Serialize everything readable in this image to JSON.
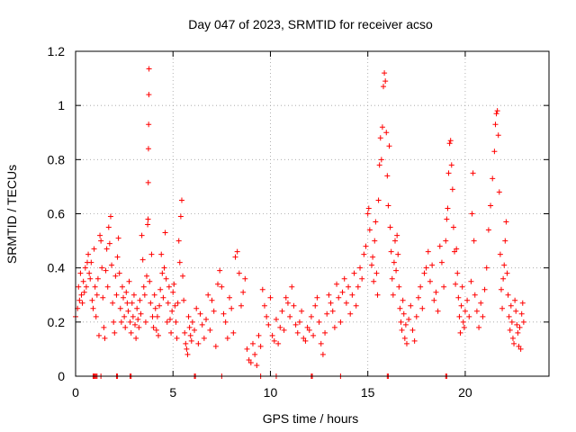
{
  "chart_data": {
    "type": "scatter",
    "title": "Day 047 of 2023, SRMTID for receiver acso",
    "xlabel": "GPS time / hours",
    "ylabel": "SRMTID / TECUs",
    "xlim": [
      0,
      24.3
    ],
    "ylim": [
      0,
      1.2
    ],
    "x_ticks": [
      0,
      5,
      10,
      15,
      20
    ],
    "x_tick_labels": [
      "0",
      "5",
      "10",
      "15",
      "20"
    ],
    "y_ticks": [
      0,
      0.2,
      0.4,
      0.6,
      0.8,
      1.0,
      1.2
    ],
    "y_tick_labels": [
      "0",
      "0.2",
      "0.4",
      "0.6",
      "0.8",
      "1",
      "1.2"
    ],
    "grid": true,
    "marker": "plus",
    "color": "#ff0000",
    "points": [
      [
        0.0,
        0.22
      ],
      [
        0.1,
        0.25
      ],
      [
        0.15,
        0.33
      ],
      [
        0.2,
        0.28
      ],
      [
        0.25,
        0.38
      ],
      [
        0.3,
        0.3
      ],
      [
        0.35,
        0.27
      ],
      [
        0.4,
        0.35
      ],
      [
        0.45,
        0.31
      ],
      [
        0.5,
        0.4
      ],
      [
        0.55,
        0.33
      ],
      [
        0.6,
        0.42
      ],
      [
        0.65,
        0.45
      ],
      [
        0.7,
        0.38
      ],
      [
        0.75,
        0.36
      ],
      [
        0.8,
        0.42
      ],
      [
        0.85,
        0.28
      ],
      [
        0.9,
        0.25
      ],
      [
        0.95,
        0.47
      ],
      [
        1.0,
        0.33
      ],
      [
        1.05,
        0.22
      ],
      [
        1.1,
        0.3
      ],
      [
        1.15,
        0.36
      ],
      [
        1.2,
        0.15
      ],
      [
        1.25,
        0.52
      ],
      [
        1.3,
        0.5
      ],
      [
        1.35,
        0.4
      ],
      [
        1.4,
        0.29
      ],
      [
        1.45,
        0.18
      ],
      [
        1.5,
        0.14
      ],
      [
        1.55,
        0.39
      ],
      [
        1.6,
        0.47
      ],
      [
        1.65,
        0.33
      ],
      [
        1.7,
        0.55
      ],
      [
        1.75,
        0.49
      ],
      [
        1.8,
        0.59
      ],
      [
        1.85,
        0.41
      ],
      [
        1.9,
        0.27
      ],
      [
        1.95,
        0.2
      ],
      [
        2.0,
        0.16
      ],
      [
        2.05,
        0.37
      ],
      [
        2.1,
        0.3
      ],
      [
        2.15,
        0.44
      ],
      [
        2.2,
        0.51
      ],
      [
        2.25,
        0.38
      ],
      [
        2.3,
        0.25
      ],
      [
        2.35,
        0.2
      ],
      [
        2.4,
        0.33
      ],
      [
        2.45,
        0.29
      ],
      [
        2.5,
        0.22
      ],
      [
        2.55,
        0.18
      ],
      [
        2.6,
        0.31
      ],
      [
        2.65,
        0.27
      ],
      [
        2.7,
        0.24
      ],
      [
        2.75,
        0.35
      ],
      [
        2.8,
        0.2
      ],
      [
        2.85,
        0.16
      ],
      [
        2.9,
        0.27
      ],
      [
        2.95,
        0.22
      ],
      [
        3.0,
        0.3
      ],
      [
        3.05,
        0.19
      ],
      [
        3.1,
        0.14
      ],
      [
        3.15,
        0.25
      ],
      [
        3.2,
        0.21
      ],
      [
        3.25,
        0.18
      ],
      [
        3.3,
        0.28
      ],
      [
        3.35,
        0.23
      ],
      [
        3.4,
        0.52
      ],
      [
        3.45,
        0.43
      ],
      [
        3.5,
        0.33
      ],
      [
        3.55,
        0.3
      ],
      [
        3.6,
        0.2
      ],
      [
        3.65,
        0.37
      ],
      [
        3.7,
        0.56
      ],
      [
        3.72,
        0.58
      ],
      [
        3.73,
        0.715
      ],
      [
        3.74,
        0.84
      ],
      [
        3.75,
        0.93
      ],
      [
        3.76,
        1.04
      ],
      [
        3.77,
        1.135
      ],
      [
        3.8,
        0.35
      ],
      [
        3.85,
        0.27
      ],
      [
        3.9,
        0.45
      ],
      [
        3.95,
        0.22
      ],
      [
        4.0,
        0.18
      ],
      [
        4.05,
        0.3
      ],
      [
        4.1,
        0.25
      ],
      [
        4.15,
        0.17
      ],
      [
        4.2,
        0.22
      ],
      [
        4.25,
        0.15
      ],
      [
        4.3,
        0.26
      ],
      [
        4.35,
        0.32
      ],
      [
        4.4,
        0.45
      ],
      [
        4.45,
        0.38
      ],
      [
        4.5,
        0.29
      ],
      [
        4.55,
        0.4
      ],
      [
        4.6,
        0.53
      ],
      [
        4.65,
        0.36
      ],
      [
        4.7,
        0.2
      ],
      [
        4.75,
        0.27
      ],
      [
        4.8,
        0.33
      ],
      [
        4.85,
        0.21
      ],
      [
        4.9,
        0.16
      ],
      [
        4.95,
        0.24
      ],
      [
        5.0,
        0.31
      ],
      [
        5.05,
        0.34
      ],
      [
        5.1,
        0.26
      ],
      [
        5.15,
        0.2
      ],
      [
        5.2,
        0.14
      ],
      [
        5.25,
        0.27
      ],
      [
        5.3,
        0.5
      ],
      [
        5.35,
        0.42
      ],
      [
        5.4,
        0.59
      ],
      [
        5.45,
        0.65
      ],
      [
        5.5,
        0.37
      ],
      [
        5.55,
        0.28
      ],
      [
        5.6,
        0.16
      ],
      [
        5.65,
        0.12
      ],
      [
        5.7,
        0.1
      ],
      [
        5.75,
        0.08
      ],
      [
        5.8,
        0.22
      ],
      [
        5.85,
        0.18
      ],
      [
        5.9,
        0.15
      ],
      [
        5.95,
        0.13
      ],
      [
        6.0,
        0.2
      ],
      [
        6.1,
        0.17
      ],
      [
        6.2,
        0.25
      ],
      [
        6.3,
        0.12
      ],
      [
        6.4,
        0.23
      ],
      [
        6.5,
        0.19
      ],
      [
        6.6,
        0.14
      ],
      [
        6.7,
        0.21
      ],
      [
        6.8,
        0.3
      ],
      [
        6.9,
        0.17
      ],
      [
        7.0,
        0.28
      ],
      [
        7.1,
        0.24
      ],
      [
        7.2,
        0.11
      ],
      [
        7.3,
        0.34
      ],
      [
        7.4,
        0.39
      ],
      [
        7.5,
        0.33
      ],
      [
        7.6,
        0.23
      ],
      [
        7.7,
        0.2
      ],
      [
        7.8,
        0.14
      ],
      [
        7.9,
        0.29
      ],
      [
        8.0,
        0.25
      ],
      [
        8.1,
        0.16
      ],
      [
        8.2,
        0.44
      ],
      [
        8.3,
        0.46
      ],
      [
        8.4,
        0.38
      ],
      [
        8.5,
        0.26
      ],
      [
        8.6,
        0.31
      ],
      [
        8.7,
        0.36
      ],
      [
        8.8,
        0.1
      ],
      [
        8.9,
        0.06
      ],
      [
        9.0,
        0.05
      ],
      [
        9.1,
        0.12
      ],
      [
        9.2,
        0.08
      ],
      [
        9.3,
        0.04
      ],
      [
        9.4,
        0.15
      ],
      [
        9.5,
        0.11
      ],
      [
        9.6,
        0.32
      ],
      [
        9.7,
        0.26
      ],
      [
        9.8,
        0.22
      ],
      [
        9.9,
        0.19
      ],
      [
        10.0,
        0.29
      ],
      [
        10.1,
        0.15
      ],
      [
        10.2,
        0.13
      ],
      [
        10.3,
        0.21
      ],
      [
        10.4,
        0.12
      ],
      [
        10.5,
        0.18
      ],
      [
        10.6,
        0.24
      ],
      [
        10.7,
        0.17
      ],
      [
        10.8,
        0.29
      ],
      [
        10.9,
        0.27
      ],
      [
        11.0,
        0.22
      ],
      [
        11.1,
        0.33
      ],
      [
        11.2,
        0.26
      ],
      [
        11.3,
        0.19
      ],
      [
        11.4,
        0.16
      ],
      [
        11.5,
        0.2
      ],
      [
        11.6,
        0.24
      ],
      [
        11.7,
        0.14
      ],
      [
        11.8,
        0.13
      ],
      [
        11.9,
        0.18
      ],
      [
        12.0,
        0.17
      ],
      [
        12.1,
        0.22
      ],
      [
        12.2,
        0.15
      ],
      [
        12.3,
        0.26
      ],
      [
        12.4,
        0.29
      ],
      [
        12.5,
        0.2
      ],
      [
        12.6,
        0.12
      ],
      [
        12.7,
        0.08
      ],
      [
        12.8,
        0.16
      ],
      [
        12.9,
        0.23
      ],
      [
        13.0,
        0.3
      ],
      [
        13.1,
        0.27
      ],
      [
        13.2,
        0.24
      ],
      [
        13.3,
        0.18
      ],
      [
        13.4,
        0.34
      ],
      [
        13.5,
        0.29
      ],
      [
        13.6,
        0.2
      ],
      [
        13.7,
        0.31
      ],
      [
        13.8,
        0.36
      ],
      [
        13.9,
        0.27
      ],
      [
        14.0,
        0.33
      ],
      [
        14.1,
        0.23
      ],
      [
        14.2,
        0.3
      ],
      [
        14.3,
        0.38
      ],
      [
        14.4,
        0.26
      ],
      [
        14.5,
        0.33
      ],
      [
        14.6,
        0.4
      ],
      [
        14.7,
        0.36
      ],
      [
        14.8,
        0.45
      ],
      [
        14.9,
        0.48
      ],
      [
        15.0,
        0.6
      ],
      [
        15.05,
        0.62
      ],
      [
        15.1,
        0.54
      ],
      [
        15.2,
        0.41
      ],
      [
        15.25,
        0.44
      ],
      [
        15.3,
        0.35
      ],
      [
        15.35,
        0.5
      ],
      [
        15.4,
        0.57
      ],
      [
        15.45,
        0.38
      ],
      [
        15.5,
        0.3
      ],
      [
        15.55,
        0.65
      ],
      [
        15.6,
        0.78
      ],
      [
        15.65,
        0.88
      ],
      [
        15.7,
        0.8
      ],
      [
        15.75,
        0.92
      ],
      [
        15.8,
        1.07
      ],
      [
        15.85,
        1.12
      ],
      [
        15.9,
        1.09
      ],
      [
        15.95,
        0.9
      ],
      [
        16.0,
        0.74
      ],
      [
        16.05,
        0.63
      ],
      [
        16.1,
        0.85
      ],
      [
        16.15,
        0.55
      ],
      [
        16.2,
        0.46
      ],
      [
        16.25,
        0.36
      ],
      [
        16.3,
        0.3
      ],
      [
        16.35,
        0.42
      ],
      [
        16.4,
        0.5
      ],
      [
        16.45,
        0.39
      ],
      [
        16.5,
        0.52
      ],
      [
        16.55,
        0.45
      ],
      [
        16.6,
        0.33
      ],
      [
        16.65,
        0.25
      ],
      [
        16.7,
        0.2
      ],
      [
        16.75,
        0.17
      ],
      [
        16.8,
        0.28
      ],
      [
        16.85,
        0.23
      ],
      [
        16.9,
        0.14
      ],
      [
        16.95,
        0.19
      ],
      [
        17.0,
        0.12
      ],
      [
        17.1,
        0.21
      ],
      [
        17.2,
        0.26
      ],
      [
        17.3,
        0.17
      ],
      [
        17.4,
        0.13
      ],
      [
        17.5,
        0.22
      ],
      [
        17.6,
        0.29
      ],
      [
        17.7,
        0.33
      ],
      [
        17.8,
        0.25
      ],
      [
        17.9,
        0.38
      ],
      [
        18.0,
        0.4
      ],
      [
        18.1,
        0.46
      ],
      [
        18.2,
        0.35
      ],
      [
        18.3,
        0.41
      ],
      [
        18.4,
        0.28
      ],
      [
        18.5,
        0.31
      ],
      [
        18.6,
        0.24
      ],
      [
        18.7,
        0.48
      ],
      [
        18.8,
        0.42
      ],
      [
        18.9,
        0.33
      ],
      [
        19.0,
        0.5
      ],
      [
        19.05,
        0.58
      ],
      [
        19.1,
        0.62
      ],
      [
        19.15,
        0.75
      ],
      [
        19.2,
        0.86
      ],
      [
        19.25,
        0.87
      ],
      [
        19.3,
        0.78
      ],
      [
        19.35,
        0.69
      ],
      [
        19.4,
        0.55
      ],
      [
        19.45,
        0.46
      ],
      [
        19.5,
        0.34
      ],
      [
        19.55,
        0.47
      ],
      [
        19.6,
        0.38
      ],
      [
        19.65,
        0.29
      ],
      [
        19.7,
        0.22
      ],
      [
        19.75,
        0.16
      ],
      [
        19.8,
        0.26
      ],
      [
        19.85,
        0.33
      ],
      [
        19.9,
        0.2
      ],
      [
        19.95,
        0.18
      ],
      [
        20.0,
        0.24
      ],
      [
        20.1,
        0.28
      ],
      [
        20.2,
        0.22
      ],
      [
        20.3,
        0.35
      ],
      [
        20.35,
        0.6
      ],
      [
        20.4,
        0.75
      ],
      [
        20.45,
        0.5
      ],
      [
        20.5,
        0.3
      ],
      [
        20.6,
        0.24
      ],
      [
        20.7,
        0.18
      ],
      [
        20.8,
        0.27
      ],
      [
        20.9,
        0.22
      ],
      [
        21.0,
        0.32
      ],
      [
        21.1,
        0.4
      ],
      [
        21.2,
        0.54
      ],
      [
        21.3,
        0.63
      ],
      [
        21.4,
        0.73
      ],
      [
        21.5,
        0.83
      ],
      [
        21.55,
        0.93
      ],
      [
        21.6,
        0.97
      ],
      [
        21.65,
        0.98
      ],
      [
        21.7,
        0.89
      ],
      [
        21.75,
        0.68
      ],
      [
        21.8,
        0.45
      ],
      [
        21.85,
        0.32
      ],
      [
        21.9,
        0.25
      ],
      [
        21.95,
        0.36
      ],
      [
        22.0,
        0.41
      ],
      [
        22.05,
        0.5
      ],
      [
        22.1,
        0.57
      ],
      [
        22.15,
        0.38
      ],
      [
        22.2,
        0.3
      ],
      [
        22.25,
        0.22
      ],
      [
        22.3,
        0.17
      ],
      [
        22.35,
        0.26
      ],
      [
        22.4,
        0.2
      ],
      [
        22.45,
        0.14
      ],
      [
        22.5,
        0.12
      ],
      [
        22.55,
        0.28
      ],
      [
        22.6,
        0.24
      ],
      [
        22.65,
        0.19
      ],
      [
        22.7,
        0.16
      ],
      [
        22.75,
        0.11
      ],
      [
        22.8,
        0.18
      ],
      [
        22.85,
        0.1
      ],
      [
        22.9,
        0.23
      ],
      [
        22.95,
        0.27
      ],
      [
        23.0,
        0.2
      ],
      [
        0.9,
        0.0
      ],
      [
        0.95,
        0.0
      ],
      [
        1.0,
        0.0
      ],
      [
        1.05,
        0.0
      ],
      [
        1.1,
        0.0
      ],
      [
        1.3,
        0.0
      ],
      [
        2.1,
        0.0
      ],
      [
        2.15,
        0.0
      ],
      [
        2.8,
        0.0
      ],
      [
        2.85,
        0.0
      ],
      [
        6.1,
        0.0
      ],
      [
        6.15,
        0.0
      ],
      [
        7.5,
        0.0
      ],
      [
        9.5,
        0.0
      ],
      [
        10.3,
        0.0
      ],
      [
        12.1,
        0.0
      ],
      [
        12.15,
        0.0
      ],
      [
        13.6,
        0.0
      ],
      [
        16.0,
        0.0
      ],
      [
        16.05,
        0.0
      ],
      [
        19.0,
        0.0
      ],
      [
        19.05,
        0.0
      ]
    ]
  }
}
